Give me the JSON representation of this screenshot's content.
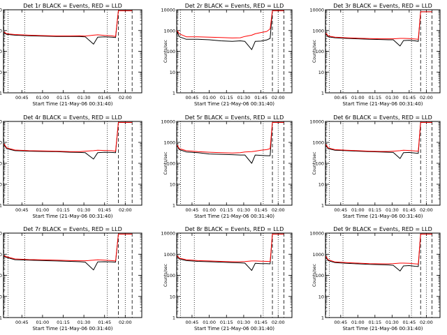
{
  "chart_data": {
    "type": "line",
    "layout": "3x3 grid",
    "y_scale": "log",
    "ylim": [
      1,
      10000
    ],
    "y_ticks": [
      1,
      10,
      100,
      1000,
      10000
    ],
    "y_tick_labels": [
      "1",
      "10",
      "100",
      "1000",
      "10000"
    ],
    "x_tick_times": [
      "00:45",
      "01:00",
      "01:15",
      "01:30",
      "01:45",
      "02:00"
    ],
    "xlim": [
      "00:31:40",
      "02:12:00"
    ],
    "xlabel": "Start Time (21-May-06 00:31:40)",
    "ylabel": "Counts/sec",
    "vertical_lines": {
      "dotted": [
        "00:35:00",
        "00:47:00",
        "01:47:00",
        "02:00:00"
      ],
      "dashed": [
        "00:31:55",
        "01:55:00",
        "02:05:00"
      ]
    },
    "colors": {
      "events": "#000000",
      "lld": "#ff0000"
    },
    "x": [
      "00:32",
      "00:34",
      "00:40",
      "00:50",
      "01:00",
      "01:10",
      "01:20",
      "01:27",
      "01:31",
      "01:37",
      "01:40",
      "01:45",
      "01:50",
      "01:53",
      "01:55",
      "01:57",
      "02:00",
      "02:05"
    ],
    "panels": [
      {
        "title": "Det 1r BLACK = Events, RED = LLD",
        "events": [
          800,
          650,
          600,
          560,
          540,
          520,
          520,
          510,
          500,
          220,
          480,
          500,
          480,
          460,
          9000,
          9000,
          9000,
          9000
        ],
        "lld": [
          850,
          700,
          640,
          600,
          570,
          550,
          550,
          560,
          540,
          600,
          620,
          580,
          560,
          520,
          9000,
          9000,
          9000,
          9000
        ]
      },
      {
        "title": "Det 2r BLACK = Events, RED = LLD",
        "events": [
          900,
          500,
          380,
          380,
          360,
          320,
          300,
          320,
          300,
          120,
          300,
          310,
          350,
          420,
          9000,
          9000,
          9000,
          9000
        ],
        "lld": [
          1000,
          700,
          500,
          500,
          480,
          460,
          440,
          450,
          520,
          600,
          700,
          800,
          900,
          1200,
          9000,
          9000,
          9000,
          9000
        ]
      },
      {
        "title": "Det 3r BLACK = Events, RED = LLD",
        "events": [
          700,
          500,
          450,
          420,
          400,
          380,
          370,
          360,
          360,
          180,
          330,
          340,
          320,
          300,
          8000,
          8000,
          8000,
          8000
        ],
        "lld": [
          750,
          550,
          480,
          450,
          430,
          410,
          400,
          400,
          400,
          420,
          420,
          410,
          390,
          380,
          8000,
          8000,
          8000,
          8000
        ]
      },
      {
        "title": "Det 4r BLACK = Events, RED = LLD",
        "events": [
          800,
          500,
          400,
          380,
          370,
          360,
          340,
          330,
          320,
          160,
          320,
          340,
          330,
          320,
          9000,
          9000,
          9000,
          9000
        ],
        "lld": [
          850,
          550,
          430,
          400,
          390,
          380,
          360,
          360,
          380,
          400,
          420,
          410,
          400,
          380,
          9000,
          9000,
          9000,
          9000
        ]
      },
      {
        "title": "Det 5r BLACK = Events, RED = LLD",
        "events": [
          700,
          450,
          350,
          320,
          280,
          270,
          260,
          250,
          250,
          100,
          250,
          240,
          230,
          230,
          9000,
          9000,
          9000,
          9000
        ],
        "lld": [
          750,
          500,
          400,
          360,
          340,
          320,
          310,
          320,
          350,
          360,
          380,
          420,
          450,
          500,
          9000,
          9000,
          9000,
          9000
        ]
      },
      {
        "title": "Det 6r BLACK = Events, RED = LLD",
        "events": [
          750,
          500,
          420,
          400,
          380,
          360,
          350,
          340,
          330,
          170,
          320,
          330,
          310,
          300,
          9000,
          9000,
          9000,
          9000
        ],
        "lld": [
          800,
          550,
          450,
          420,
          400,
          380,
          370,
          370,
          380,
          400,
          420,
          410,
          390,
          380,
          9000,
          9000,
          9000,
          9000
        ]
      },
      {
        "title": "Det 7r BLACK = Events, RED = LLD",
        "events": [
          800,
          700,
          550,
          520,
          500,
          480,
          460,
          440,
          420,
          180,
          430,
          440,
          430,
          420,
          9000,
          9000,
          9000,
          9000
        ],
        "lld": [
          850,
          750,
          600,
          560,
          540,
          520,
          500,
          490,
          490,
          520,
          540,
          520,
          500,
          480,
          9000,
          9000,
          9000,
          9000
        ]
      },
      {
        "title": "Det 8r BLACK = Events, RED = LLD",
        "events": [
          800,
          600,
          500,
          460,
          440,
          420,
          400,
          390,
          380,
          170,
          370,
          360,
          360,
          350,
          9000,
          9000,
          9000,
          9000
        ],
        "lld": [
          850,
          650,
          550,
          500,
          480,
          460,
          440,
          440,
          450,
          480,
          480,
          470,
          460,
          450,
          9000,
          9000,
          9000,
          9000
        ]
      },
      {
        "title": "Det 9r BLACK = Events, RED = LLD",
        "events": [
          750,
          500,
          400,
          370,
          350,
          330,
          320,
          310,
          300,
          160,
          280,
          290,
          270,
          260,
          9000,
          9000,
          9000,
          9000
        ],
        "lld": [
          800,
          550,
          430,
          400,
          380,
          360,
          350,
          350,
          360,
          380,
          380,
          370,
          350,
          340,
          9000,
          9000,
          9000,
          9000
        ]
      }
    ]
  }
}
